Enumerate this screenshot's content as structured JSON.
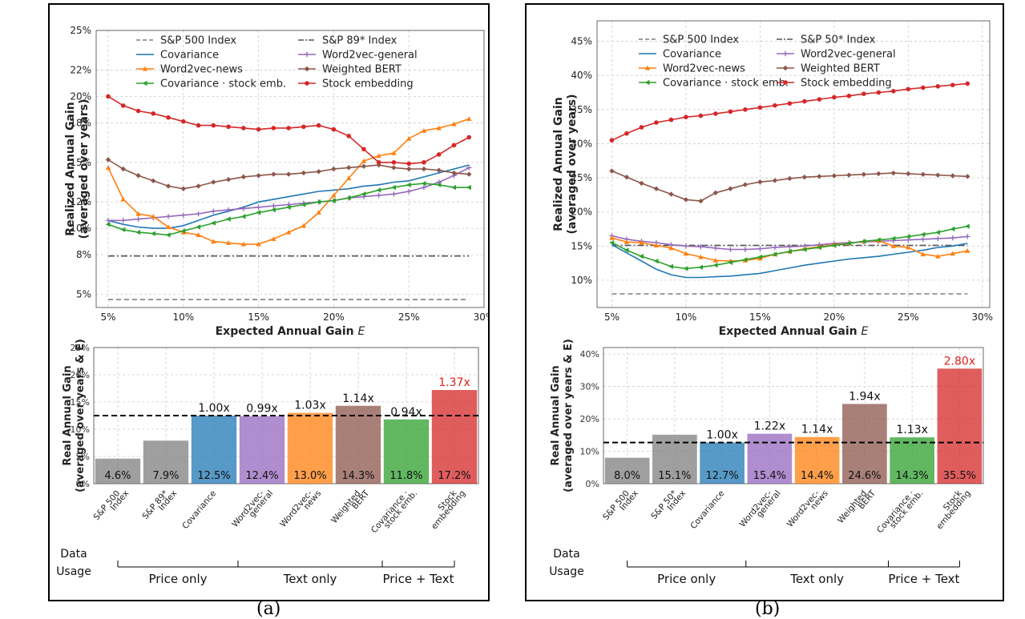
{
  "chart_data": [
    {
      "panel": "a",
      "top": {
        "type": "line",
        "xlabel": "Expected Annual Gain E",
        "ylabel": "Realized Annual Gain (averaged over years)",
        "x_ticks": [
          "5%",
          "10%",
          "15%",
          "20%",
          "25%",
          "30%"
        ],
        "y_ticks": [
          "5%",
          "8%",
          "10%",
          "12%",
          "15%",
          "18%",
          "20%",
          "22%",
          "25%"
        ],
        "ylim": [
          4.0,
          25.0
        ],
        "xlim": [
          4.2,
          30.0
        ],
        "grid": true,
        "legend_position": "top",
        "x": [
          5,
          6,
          7,
          8,
          9,
          10,
          11,
          12,
          13,
          14,
          15,
          16,
          17,
          18,
          19,
          20,
          21,
          22,
          23,
          24,
          25,
          26,
          27,
          28,
          29
        ],
        "series": [
          {
            "name": "S&P 500 Index",
            "color": "#7f7f7f",
            "style": "dashed",
            "marker": "none",
            "values": [
              4.6,
              4.6,
              4.6,
              4.6,
              4.6,
              4.6,
              4.6,
              4.6,
              4.6,
              4.6,
              4.6,
              4.6,
              4.6,
              4.6,
              4.6,
              4.6,
              4.6,
              4.6,
              4.6,
              4.6,
              4.6,
              4.6,
              4.6,
              4.6,
              4.6
            ]
          },
          {
            "name": "S&P 89* Index",
            "color": "#555555",
            "style": "dashdot",
            "marker": "none",
            "values": [
              7.9,
              7.9,
              7.9,
              7.9,
              7.9,
              7.9,
              7.9,
              7.9,
              7.9,
              7.9,
              7.9,
              7.9,
              7.9,
              7.9,
              7.9,
              7.9,
              7.9,
              7.9,
              7.9,
              7.9,
              7.9,
              7.9,
              7.9,
              7.9,
              7.9
            ]
          },
          {
            "name": "Covariance",
            "color": "#1f77b4",
            "style": "solid",
            "marker": "none",
            "values": [
              10.6,
              10.3,
              10.1,
              10.0,
              10.0,
              10.2,
              10.6,
              11.0,
              11.3,
              11.6,
              12.0,
              12.2,
              12.4,
              12.6,
              12.8,
              12.9,
              13.0,
              13.2,
              13.3,
              13.5,
              13.6,
              13.9,
              14.2,
              14.5,
              14.8
            ]
          },
          {
            "name": "Word2vec-general",
            "color": "#9467bd",
            "style": "solid",
            "marker": "plus",
            "values": [
              10.6,
              10.6,
              10.7,
              10.8,
              10.9,
              11.0,
              11.1,
              11.3,
              11.4,
              11.5,
              11.6,
              11.7,
              11.8,
              11.9,
              12.0,
              12.1,
              12.3,
              12.4,
              12.5,
              12.6,
              12.8,
              13.1,
              13.5,
              14.0,
              14.6
            ]
          },
          {
            "name": "Word2vec-news",
            "color": "#ff7f0e",
            "style": "solid",
            "marker": "triangle",
            "values": [
              14.6,
              12.2,
              11.1,
              10.9,
              10.1,
              9.7,
              9.5,
              9.0,
              8.9,
              8.8,
              8.8,
              9.2,
              9.7,
              10.2,
              11.2,
              12.5,
              13.8,
              15.1,
              15.5,
              15.7,
              16.8,
              17.4,
              17.6,
              17.9,
              18.3
            ]
          },
          {
            "name": "Weighted BERT",
            "color": "#8c564b",
            "style": "solid",
            "marker": "diamond",
            "values": [
              15.2,
              14.5,
              14.0,
              13.6,
              13.2,
              13.0,
              13.2,
              13.5,
              13.7,
              13.9,
              14.0,
              14.1,
              14.1,
              14.2,
              14.3,
              14.5,
              14.6,
              14.7,
              14.8,
              14.6,
              14.5,
              14.5,
              14.4,
              14.2,
              14.1
            ]
          },
          {
            "name": "Covariance · stock emb.",
            "color": "#2ca02c",
            "style": "solid",
            "marker": "leftTriangle",
            "values": [
              10.3,
              9.9,
              9.7,
              9.6,
              9.5,
              9.8,
              10.1,
              10.4,
              10.7,
              10.9,
              11.2,
              11.4,
              11.6,
              11.8,
              12.0,
              12.1,
              12.3,
              12.6,
              12.9,
              13.1,
              13.3,
              13.4,
              13.3,
              13.1,
              13.1
            ]
          },
          {
            "name": "Stock embedding",
            "color": "#d62728",
            "style": "solid",
            "marker": "circle",
            "values": [
              20.0,
              19.3,
              18.9,
              18.7,
              18.4,
              18.1,
              17.8,
              17.8,
              17.7,
              17.6,
              17.5,
              17.6,
              17.6,
              17.7,
              17.8,
              17.5,
              17.0,
              16.0,
              15.0,
              15.0,
              14.9,
              15.0,
              15.6,
              16.3,
              16.9
            ]
          }
        ]
      },
      "bottom": {
        "type": "bar",
        "ylabel": "Real Annual Gain (averaged over years & E)",
        "y_ticks": [
          "0%",
          "5%",
          "10%",
          "15%",
          "20%",
          "25%"
        ],
        "ylim": [
          0,
          25
        ],
        "reference_value": 12.5,
        "categories": [
          "S&P 500 Index",
          "S&P 89* Index",
          "Covariance",
          "Word2vec-general",
          "Word2vec-news",
          "Weighted BERT",
          "Covariance · stock emb.",
          "Stock embedding"
        ],
        "values": [
          4.6,
          7.9,
          12.5,
          12.4,
          13.0,
          14.3,
          11.8,
          17.2
        ],
        "value_labels": [
          "4.6%",
          "7.9%",
          "12.5%",
          "12.4%",
          "13.0%",
          "14.3%",
          "11.8%",
          "17.2%"
        ],
        "ratio_labels": [
          "",
          "",
          "1.00x",
          "0.99x",
          "1.03x",
          "1.14x",
          "0.94x",
          "1.37x"
        ],
        "colors": [
          "#7f7f7f",
          "#7f7f7f",
          "#1f77b4",
          "#9467bd",
          "#ff7f0e",
          "#8c564b",
          "#2ca02c",
          "#d62728"
        ]
      },
      "usage": {
        "label": "Data Usage",
        "groups": [
          {
            "label": "Price only",
            "from": 0,
            "to": 2
          },
          {
            "label": "Text only",
            "from": 3,
            "to": 5
          },
          {
            "label": "Price + Text",
            "from": 6,
            "to": 7
          }
        ]
      },
      "caption": "(a)"
    },
    {
      "panel": "b",
      "top": {
        "type": "line",
        "xlabel": "Expected Annual Gain E",
        "ylabel": "Realized Annual Gain (averaged over years)",
        "x_ticks": [
          "5%",
          "10%",
          "15%",
          "20%",
          "25%",
          "30%"
        ],
        "y_ticks": [
          "10%",
          "15%",
          "20%",
          "25%",
          "30%",
          "35%",
          "40%",
          "45%"
        ],
        "ylim": [
          6.0,
          48.0
        ],
        "xlim": [
          4.0,
          30.5
        ],
        "grid": true,
        "legend_position": "top",
        "x": [
          5,
          6,
          7,
          8,
          9,
          10,
          11,
          12,
          13,
          14,
          15,
          16,
          17,
          18,
          19,
          20,
          21,
          22,
          23,
          24,
          25,
          26,
          27,
          28,
          29
        ],
        "series": [
          {
            "name": "S&P 500 Index",
            "color": "#7f7f7f",
            "style": "dashed",
            "marker": "none",
            "values": [
              8.0,
              8.0,
              8.0,
              8.0,
              8.0,
              8.0,
              8.0,
              8.0,
              8.0,
              8.0,
              8.0,
              8.0,
              8.0,
              8.0,
              8.0,
              8.0,
              8.0,
              8.0,
              8.0,
              8.0,
              8.0,
              8.0,
              8.0,
              8.0,
              8.0
            ]
          },
          {
            "name": "S&P 50* Index",
            "color": "#555555",
            "style": "dashdot",
            "marker": "none",
            "values": [
              15.1,
              15.1,
              15.1,
              15.1,
              15.1,
              15.1,
              15.1,
              15.1,
              15.1,
              15.1,
              15.1,
              15.1,
              15.1,
              15.1,
              15.1,
              15.1,
              15.1,
              15.1,
              15.1,
              15.1,
              15.1,
              15.1,
              15.1,
              15.1,
              15.1
            ]
          },
          {
            "name": "Covariance",
            "color": "#1f77b4",
            "style": "solid",
            "marker": "none",
            "values": [
              15.2,
              14.0,
              12.8,
              11.6,
              10.8,
              10.4,
              10.4,
              10.5,
              10.6,
              10.8,
              11.0,
              11.4,
              11.8,
              12.2,
              12.5,
              12.8,
              13.1,
              13.3,
              13.5,
              13.8,
              14.1,
              14.4,
              14.8,
              15.0,
              15.4
            ]
          },
          {
            "name": "Word2vec-general",
            "color": "#9467bd",
            "style": "solid",
            "marker": "plus",
            "values": [
              16.5,
              16.0,
              15.7,
              15.5,
              15.2,
              15.0,
              14.9,
              14.7,
              14.5,
              14.5,
              14.6,
              14.8,
              14.9,
              15.0,
              15.2,
              15.4,
              15.5,
              15.6,
              15.7,
              15.8,
              15.9,
              16.0,
              16.1,
              16.2,
              16.4
            ]
          },
          {
            "name": "Word2vec-news",
            "color": "#ff7f0e",
            "style": "solid",
            "marker": "triangle",
            "values": [
              16.2,
              15.6,
              15.5,
              15.1,
              14.7,
              13.9,
              13.4,
              12.9,
              12.8,
              12.9,
              13.2,
              13.8,
              14.2,
              14.6,
              14.9,
              15.2,
              15.4,
              15.7,
              15.8,
              15.0,
              14.8,
              13.8,
              13.5,
              13.9,
              14.3
            ]
          },
          {
            "name": "Weighted BERT",
            "color": "#8c564b",
            "style": "solid",
            "marker": "diamond",
            "values": [
              26.0,
              25.1,
              24.2,
              23.4,
              22.6,
              21.8,
              21.6,
              22.8,
              23.4,
              24.0,
              24.4,
              24.6,
              24.9,
              25.1,
              25.2,
              25.3,
              25.4,
              25.5,
              25.6,
              25.7,
              25.6,
              25.5,
              25.4,
              25.3,
              25.2
            ]
          },
          {
            "name": "Covariance · stock emb.",
            "color": "#2ca02c",
            "style": "solid",
            "marker": "leftTriangle",
            "values": [
              15.5,
              14.4,
              13.5,
              12.8,
              12.0,
              11.7,
              11.9,
              12.2,
              12.6,
              13.0,
              13.4,
              13.8,
              14.2,
              14.5,
              14.8,
              15.1,
              15.4,
              15.7,
              15.9,
              16.1,
              16.4,
              16.7,
              17.0,
              17.5,
              17.9
            ]
          },
          {
            "name": "Stock embedding",
            "color": "#d62728",
            "style": "solid",
            "marker": "circle",
            "values": [
              30.5,
              31.5,
              32.4,
              33.1,
              33.5,
              33.9,
              34.1,
              34.4,
              34.7,
              35.0,
              35.3,
              35.6,
              35.9,
              36.2,
              36.5,
              36.8,
              37.0,
              37.3,
              37.5,
              37.7,
              38.0,
              38.2,
              38.4,
              38.6,
              38.8
            ]
          }
        ]
      },
      "bottom": {
        "type": "bar",
        "ylabel": "Real Annual Gain (averaged over years & E)",
        "y_ticks": [
          "0%",
          "10%",
          "20%",
          "30%",
          "40%"
        ],
        "ylim": [
          0,
          42
        ],
        "reference_value": 12.7,
        "categories": [
          "S&P 500 Index",
          "S&P 50* Index",
          "Covariance",
          "Word2vec-general",
          "Word2vec-news",
          "Weighted BERT",
          "Covariance · stock emb.",
          "Stock embedding"
        ],
        "values": [
          8.0,
          15.1,
          12.7,
          15.4,
          14.4,
          24.6,
          14.3,
          35.5
        ],
        "value_labels": [
          "8.0%",
          "15.1%",
          "12.7%",
          "15.4%",
          "14.4%",
          "24.6%",
          "14.3%",
          "35.5%"
        ],
        "ratio_labels": [
          "",
          "",
          "1.00x",
          "1.22x",
          "1.14x",
          "1.94x",
          "1.13x",
          "2.80x"
        ],
        "colors": [
          "#7f7f7f",
          "#7f7f7f",
          "#1f77b4",
          "#9467bd",
          "#ff7f0e",
          "#8c564b",
          "#2ca02c",
          "#d62728"
        ]
      },
      "usage": {
        "label": "Data Usage",
        "groups": [
          {
            "label": "Price only",
            "from": 0,
            "to": 2
          },
          {
            "label": "Text only",
            "from": 3,
            "to": 5
          },
          {
            "label": "Price + Text",
            "from": 6,
            "to": 7
          }
        ]
      },
      "caption": "(b)"
    }
  ]
}
